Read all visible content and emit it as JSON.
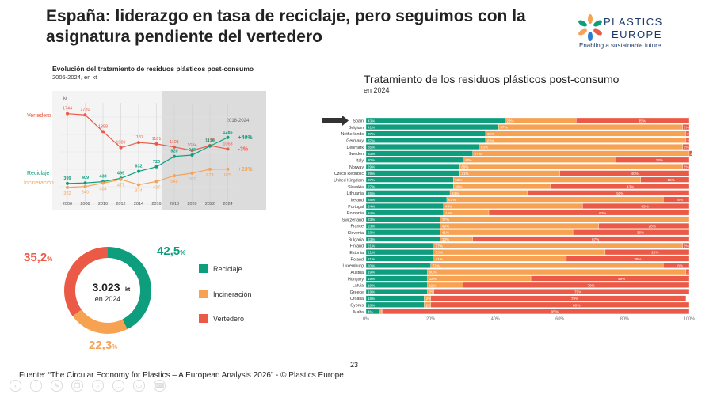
{
  "slide": {
    "title": "España: liderazgo en tasa de reciclaje, pero seguimos con la asignatura pendiente del vertedero",
    "page_number": "23",
    "footer": "Fuente: “The Circular Economy for Plastics – A European Analysis 2026” - © Plastics Europe"
  },
  "logo": {
    "line1": "PLASTICS",
    "line2": "EUROPE",
    "tagline": "Enabling a sustainable future",
    "icon": "star-flower-icon"
  },
  "colors": {
    "recycling": "#0e9e7e",
    "incineration": "#f7a253",
    "landfill": "#eb5a46"
  },
  "chart_data": [
    {
      "type": "line",
      "title": "Evolución del tratamiento de residuos plásticos post-consumo",
      "subtitle": "2006-2024, en kt",
      "unit_label": "kt",
      "highlight_label": "2018-2024",
      "x": [
        "2006",
        "2008",
        "2010",
        "2012",
        "2014",
        "2016",
        "2018",
        "2020",
        "2022",
        "2024"
      ],
      "series": [
        {
          "name": "Vertedero",
          "color": "#eb5a46",
          "values": [
            1744,
            1720,
            1398,
            1089,
            1187,
            1161,
            1101,
            1034,
            1128,
            1063
          ],
          "change": "-3%"
        },
        {
          "name": "Reciclaje",
          "color": "#0e9e7e",
          "values": [
            399,
            409,
            433,
            499,
            632,
            720,
            920,
            946,
            1119,
            1285
          ],
          "change": "+40%"
        },
        {
          "name": "Incineración",
          "color": "#f7a253",
          "values": [
            322,
            340,
            404,
            477,
            374,
            437,
            548,
            597,
            673,
            675
          ],
          "change": "+23%"
        }
      ]
    },
    {
      "type": "pie",
      "center_value": "3.023",
      "center_unit": "kt",
      "center_label": "en 2024",
      "slices": [
        {
          "name": "Reciclaje",
          "value": 42.5,
          "int": "42,5",
          "color": "#0e9e7e"
        },
        {
          "name": "Incineración",
          "value": 22.3,
          "int": "22,3",
          "color": "#f7a253"
        },
        {
          "name": "Vertedero",
          "value": 35.2,
          "int": "35,2",
          "color": "#eb5a46"
        }
      ]
    },
    {
      "type": "bar",
      "stacked": true,
      "orientation": "horizontal",
      "title": "Tratamiento de los residuos plásticos post-consumo",
      "subtitle": "en 2024",
      "xlim": [
        0,
        100
      ],
      "x_ticks": [
        "0%",
        "20%",
        "40%",
        "60%",
        "80%",
        "100%"
      ],
      "highlight": "Spain",
      "series_names": [
        "Reciclaje",
        "Incineración",
        "Vertedero"
      ],
      "categories": [
        "Spain",
        "Belgium",
        "Netherlands",
        "Germany",
        "Denmark",
        "Sweden",
        "Italy",
        "Norway",
        "Czech Republic",
        "United Kingdom",
        "Slovakia",
        "Lithuania",
        "Ireland",
        "Portugal",
        "Romania",
        "Switzerland",
        "France",
        "Slovenia",
        "Bulgaria",
        "Finland",
        "Estonia",
        "Poland",
        "Luxemburg",
        "Austria",
        "Hungary",
        "Latvia",
        "Greece",
        "Croatia",
        "Cyprus",
        "Malta"
      ],
      "recycling": [
        43,
        41,
        37,
        37,
        35,
        33,
        30,
        29,
        29,
        27,
        27,
        26,
        25,
        24,
        24,
        23,
        23,
        23,
        23,
        21,
        21,
        21,
        20,
        19,
        19,
        19,
        19,
        18,
        18,
        4
      ],
      "incineration": [
        22,
        57,
        62,
        62,
        63,
        67,
        47,
        69,
        31,
        58,
        30,
        24,
        67,
        43,
        14,
        77,
        49,
        41,
        10,
        77,
        53,
        41,
        72,
        80,
        32,
        11,
        2,
        2,
        2,
        1
      ],
      "landfill": [
        35,
        2,
        1,
        1,
        2,
        1,
        23,
        2,
        40,
        15,
        43,
        50,
        8,
        33,
        62,
        0,
        28,
        36,
        67,
        2,
        26,
        38,
        8,
        1,
        49,
        70,
        79,
        79,
        80,
        95
      ],
      "labels": {
        "recycling": [
          "43%",
          "41%",
          "37%",
          "37%",
          "35%",
          "33%",
          "30%",
          "29%",
          "29%",
          "27%",
          "27%",
          "26%",
          "25%",
          "24%",
          "24%",
          "23%",
          "23%",
          "23%",
          "23%",
          "21%",
          "21%",
          "21%",
          "20%",
          "19%",
          "19%",
          "19%",
          "19%",
          "18%",
          "18%",
          "4%"
        ],
        "incineration": [
          "22%",
          "57%",
          "62%",
          "62%",
          "63%",
          "67%",
          "47%",
          "69%",
          "31%",
          "58%",
          "30%",
          "24%",
          "67%",
          "43%",
          "14%",
          "77%",
          "49%",
          "41%",
          "10%",
          "77%",
          "53%",
          "41%",
          "72%",
          "80%",
          "32%",
          "11%",
          "2%",
          "2%",
          "2%",
          "1%"
        ],
        "landfill": [
          "35%",
          "2%",
          "1%",
          "1%",
          "2%",
          "1%",
          "23%",
          "2%",
          "40%",
          "15%",
          "43%",
          "50%",
          "8%",
          "33%",
          "62%",
          "",
          "28%",
          "36%",
          "67%",
          "2%",
          "26%",
          "38%",
          "8%",
          "1%",
          "49%",
          "70%",
          "79%",
          "79%",
          "80%",
          "95%"
        ]
      }
    }
  ],
  "legend": [
    {
      "label": "Reciclaje",
      "color": "#0e9e7e"
    },
    {
      "label": "Incineración",
      "color": "#f7a253"
    },
    {
      "label": "Vertedero",
      "color": "#eb5a46"
    }
  ],
  "toolbar": [
    "prev-icon",
    "next-icon",
    "pen-icon",
    "copy-icon",
    "search-icon",
    "more-icon",
    "caption-icon",
    "keyboard-icon"
  ]
}
